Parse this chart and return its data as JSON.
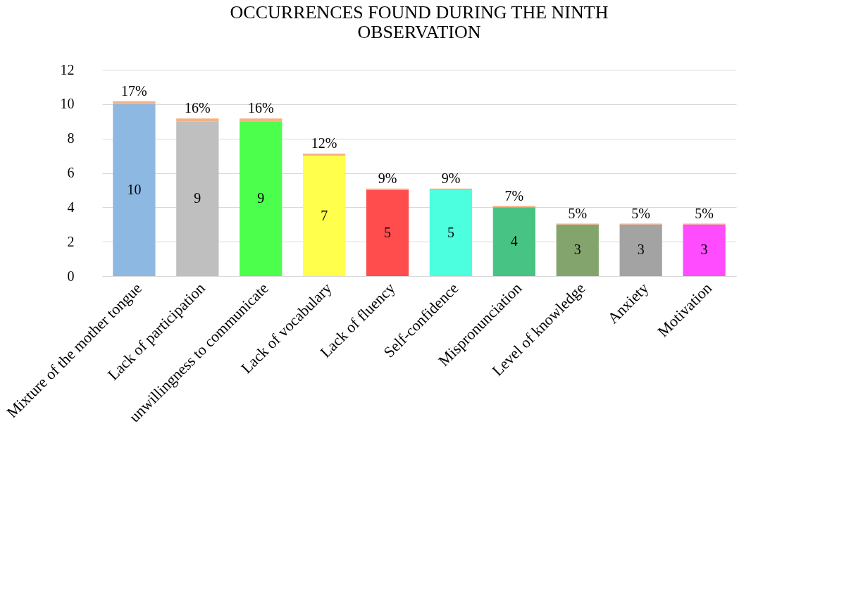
{
  "chart_data": {
    "type": "bar",
    "title": "OCCURRENCES FOUND DURING THE NINTH OBSERVATION",
    "stacked": true,
    "categories": [
      "Mixture of the mother tongue",
      "Lack of participation",
      "unwillingness to communicate",
      "Lack of vocabulary",
      "Lack of fluency",
      "Self-confidence",
      "Mispronunciation",
      "Level of knowledge",
      "Anxiety",
      "Motivation"
    ],
    "series": [
      {
        "colors": [
          "#8db8e2",
          "#bfbfbf",
          "#4cff4c",
          "#ffff4c",
          "#ff4c4c",
          "#4cffdf",
          "#47c383",
          "#84a46e",
          "#a3a3a3",
          "#ff4cff"
        ],
        "values": [
          10,
          9,
          9,
          7,
          5,
          5,
          4,
          3,
          3,
          3
        ],
        "value_labels": [
          "10",
          "9",
          "9",
          "7",
          "5",
          "5",
          "4",
          "3",
          "3",
          "3"
        ]
      },
      {
        "color": "#f4b183",
        "values": [
          0.17,
          0.16,
          0.16,
          0.12,
          0.09,
          0.09,
          0.07,
          0.05,
          0.05,
          0.05
        ],
        "value_labels": [
          "17%",
          "16%",
          "16%",
          "12%",
          "9%",
          "9%",
          "7%",
          "5%",
          "5%",
          "5%"
        ]
      }
    ],
    "ylim": [
      0,
      12
    ],
    "yticks": [
      0,
      2,
      4,
      6,
      8,
      10,
      12
    ],
    "grid": "y"
  }
}
